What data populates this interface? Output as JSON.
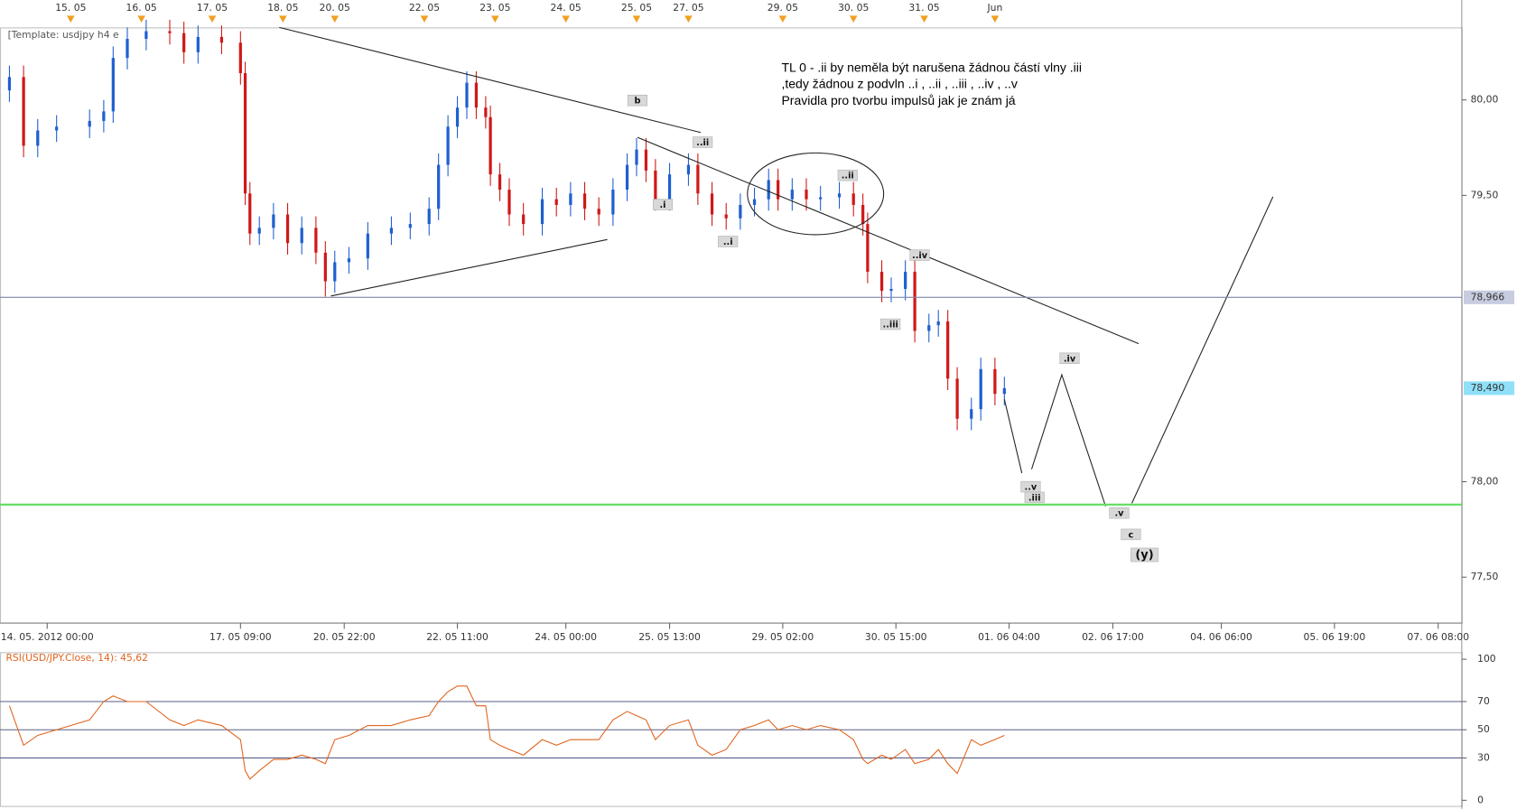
{
  "chart_data": [
    {
      "type": "candlestick",
      "template_label": "[Template: usdjpy h4 e",
      "annotations": [
        "TL 0 - .ii by neměla být narušena žádnou částí vlny .iii",
        ",tedy žádnou z podvln ..i , ..ii , ..iii , ..iv , ..v",
        "Pravidla pro tvorbu impulsů jak je znám já"
      ],
      "wave_labels": [
        "b",
        "..ii",
        ".i",
        "..i",
        "..ii",
        "..iv",
        "..iii",
        ".iv",
        "..v",
        ".iii",
        ".v",
        "c",
        "(y)"
      ],
      "up_color": "#1f5fd0",
      "down_color": "#d01818",
      "x": [
        2,
        5,
        8,
        12,
        19,
        22,
        24,
        27,
        31,
        36,
        39,
        42,
        47,
        51,
        52,
        53,
        55,
        58,
        61,
        64,
        67,
        69,
        71,
        74,
        78,
        83,
        87,
        91,
        93,
        95,
        97,
        99,
        101,
        103,
        104,
        106,
        108,
        111,
        115,
        118,
        121,
        124,
        127,
        130,
        133,
        135,
        137,
        139,
        142,
        146,
        148,
        151,
        154,
        157,
        160,
        163,
        165,
        168,
        171,
        174,
        178,
        181,
        183,
        184,
        187,
        189,
        192,
        194,
        197,
        199,
        201,
        203,
        206,
        208,
        211,
        213
      ],
      "open": [
        80.05,
        80.12,
        79.76,
        79.84,
        79.86,
        79.89,
        79.94,
        80.22,
        80.32,
        80.36,
        80.35,
        80.25,
        80.33,
        80.3,
        80.14,
        79.51,
        79.3,
        79.33,
        79.4,
        79.25,
        79.33,
        79.2,
        79.05,
        79.15,
        79.17,
        79.3,
        79.33,
        79.35,
        79.43,
        79.66,
        79.86,
        79.96,
        80.09,
        79.96,
        79.91,
        79.61,
        79.53,
        79.4,
        79.35,
        79.48,
        79.45,
        79.51,
        79.43,
        79.4,
        79.53,
        79.66,
        79.74,
        79.63,
        79.48,
        79.61,
        79.66,
        79.51,
        79.4,
        79.38,
        79.45,
        79.48,
        79.58,
        79.48,
        79.53,
        79.48,
        79.49,
        79.51,
        79.45,
        79.35,
        79.1,
        79.0,
        79.01,
        79.1,
        78.79,
        78.82,
        78.84,
        78.54,
        78.33,
        78.38,
        78.59,
        78.46
      ],
      "high": [
        80.18,
        80.18,
        79.9,
        79.92,
        79.95,
        80.0,
        80.28,
        80.38,
        80.42,
        80.42,
        80.41,
        80.39,
        80.39,
        80.36,
        80.2,
        79.57,
        79.39,
        79.46,
        79.46,
        79.39,
        79.39,
        79.26,
        79.21,
        79.23,
        79.36,
        79.39,
        79.41,
        79.49,
        79.72,
        79.92,
        80.02,
        80.15,
        80.15,
        80.02,
        79.97,
        79.67,
        79.59,
        79.46,
        79.54,
        79.54,
        79.57,
        79.57,
        79.49,
        79.59,
        79.72,
        79.8,
        79.8,
        79.69,
        79.67,
        79.72,
        79.72,
        79.57,
        79.46,
        79.51,
        79.54,
        79.64,
        79.64,
        79.59,
        79.59,
        79.55,
        79.57,
        79.57,
        79.51,
        79.41,
        79.16,
        79.07,
        79.16,
        79.16,
        78.88,
        78.9,
        78.9,
        78.6,
        78.44,
        78.65,
        78.65,
        78.55
      ],
      "low": [
        79.99,
        79.7,
        79.7,
        79.78,
        79.8,
        79.83,
        79.88,
        80.16,
        80.26,
        80.29,
        80.19,
        80.19,
        80.24,
        80.08,
        79.45,
        79.24,
        79.24,
        79.27,
        79.19,
        79.19,
        79.14,
        78.97,
        78.99,
        79.09,
        79.11,
        79.24,
        79.27,
        79.29,
        79.37,
        79.6,
        79.8,
        79.9,
        79.9,
        79.85,
        79.55,
        79.47,
        79.34,
        79.29,
        79.29,
        79.39,
        79.39,
        79.37,
        79.34,
        79.34,
        79.47,
        79.6,
        79.57,
        79.42,
        79.42,
        79.55,
        79.45,
        79.34,
        79.32,
        79.32,
        79.39,
        79.42,
        79.42,
        79.42,
        79.42,
        79.42,
        79.43,
        79.39,
        79.29,
        79.04,
        78.94,
        78.94,
        78.95,
        78.73,
        78.73,
        78.76,
        78.48,
        78.27,
        78.27,
        78.32,
        78.4,
        78.4
      ],
      "close": [
        80.12,
        79.76,
        79.84,
        79.86,
        79.89,
        79.94,
        80.22,
        80.32,
        80.36,
        80.35,
        80.25,
        80.33,
        80.3,
        80.14,
        79.51,
        79.3,
        79.33,
        79.4,
        79.25,
        79.33,
        79.2,
        79.05,
        79.15,
        79.17,
        79.3,
        79.33,
        79.35,
        79.43,
        79.66,
        79.86,
        79.96,
        80.09,
        79.96,
        79.91,
        79.61,
        79.53,
        79.4,
        79.35,
        79.48,
        79.45,
        79.51,
        79.43,
        79.4,
        79.53,
        79.66,
        79.74,
        79.63,
        79.48,
        79.61,
        79.66,
        79.51,
        79.4,
        79.38,
        79.45,
        79.48,
        79.58,
        79.48,
        79.53,
        79.48,
        79.49,
        79.51,
        79.45,
        79.35,
        79.1,
        79.0,
        79.01,
        79.1,
        78.79,
        78.82,
        78.84,
        78.54,
        78.33,
        78.38,
        78.59,
        78.46,
        78.49
      ],
      "xlim": [
        0,
        310
      ],
      "xticks": [
        {
          "value": 10,
          "label": "14. 05. 2012 00:00"
        },
        {
          "value": 51,
          "label": "17. 05 09:00"
        },
        {
          "value": 73,
          "label": "20. 05 22:00"
        },
        {
          "value": 97,
          "label": "22. 05 11:00"
        },
        {
          "value": 120,
          "label": "24. 05 00:00"
        },
        {
          "value": 142,
          "label": "25. 05 13:00"
        },
        {
          "value": 166,
          "label": "29. 05 02:00"
        },
        {
          "value": 190,
          "label": "30. 05 15:00"
        },
        {
          "value": 214,
          "label": "01. 06 04:00"
        },
        {
          "value": 236,
          "label": "02. 06 17:00"
        },
        {
          "value": 259,
          "label": "04. 06 06:00"
        },
        {
          "value": 283,
          "label": "05. 06 19:00"
        },
        {
          "value": 305,
          "label": "07. 06 08:00"
        }
      ],
      "day_markers": [
        {
          "value": 15,
          "label": "15. 05"
        },
        {
          "value": 30,
          "label": "16. 05"
        },
        {
          "value": 45,
          "label": "17. 05"
        },
        {
          "value": 60,
          "label": "18. 05"
        },
        {
          "value": 71,
          "label": "20. 05"
        },
        {
          "value": 90,
          "label": "22. 05"
        },
        {
          "value": 105,
          "label": "23. 05"
        },
        {
          "value": 120,
          "label": "24. 05"
        },
        {
          "value": 135,
          "label": "25. 05"
        },
        {
          "value": 146,
          "label": "27. 05"
        },
        {
          "value": 166,
          "label": "29. 05"
        },
        {
          "value": 181,
          "label": "30. 05"
        },
        {
          "value": 196,
          "label": "31. 05"
        },
        {
          "value": 211,
          "label": "Jun"
        }
      ],
      "ylim": [
        77.26,
        80.38
      ],
      "yticks": [
        {
          "value": 77.5,
          "label": "77,50"
        },
        {
          "value": 78,
          "label": "78,00"
        },
        {
          "value": 79.5,
          "label": "79,50"
        },
        {
          "value": 80,
          "label": "80,00"
        }
      ],
      "price_lines": [
        {
          "value": 78.966,
          "label": "78,966",
          "color": "#7f86a8",
          "box": "#c8cce0"
        },
        {
          "value": 78.49,
          "label": "78,490",
          "color": null,
          "box": "#8fe0f8"
        }
      ],
      "horizontal_lines": [
        {
          "value": 77.88,
          "color": "#66e066"
        }
      ]
    },
    {
      "type": "line",
      "title": "RSI(USD/JPY.Close, 14): 45,62",
      "color": "#e0641e",
      "x": [
        2,
        5,
        8,
        12,
        19,
        22,
        24,
        27,
        31,
        36,
        39,
        42,
        47,
        51,
        52,
        53,
        55,
        58,
        61,
        64,
        67,
        69,
        71,
        74,
        78,
        83,
        87,
        91,
        93,
        95,
        97,
        99,
        101,
        103,
        104,
        106,
        108,
        111,
        115,
        118,
        121,
        124,
        127,
        130,
        133,
        135,
        137,
        139,
        142,
        146,
        148,
        151,
        154,
        157,
        160,
        163,
        165,
        168,
        171,
        174,
        178,
        181,
        183,
        184,
        187,
        189,
        192,
        194,
        197,
        199,
        201,
        203,
        206,
        208,
        211,
        213
      ],
      "values": [
        67,
        39,
        46,
        50,
        57,
        70,
        74,
        70,
        70,
        57,
        53,
        57,
        53,
        43,
        21,
        15,
        21,
        29,
        29,
        32,
        29,
        26,
        43,
        46,
        53,
        53,
        57,
        60,
        70,
        77,
        81,
        81,
        67,
        67,
        43,
        39,
        36,
        32,
        43,
        39,
        43,
        43,
        43,
        57,
        63,
        60,
        57,
        43,
        53,
        57,
        39,
        32,
        36,
        50,
        53,
        57,
        50,
        53,
        50,
        53,
        50,
        43,
        29,
        26,
        32,
        29,
        36,
        26,
        29,
        36,
        26,
        19,
        43,
        39,
        43,
        46
      ],
      "xlim": [
        0,
        310
      ],
      "ylim": [
        -4,
        105
      ],
      "yticks": [
        0,
        30,
        50,
        70,
        100
      ],
      "grid_values": [
        30,
        50,
        70
      ]
    }
  ]
}
